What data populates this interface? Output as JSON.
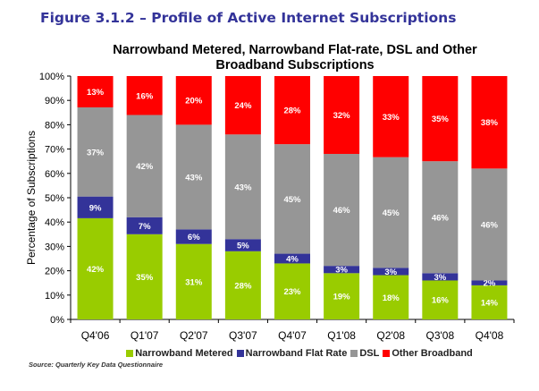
{
  "figure_title": "Figure 3.1.2 – Profile of Active Internet Subscriptions",
  "source": "Source:  Quarterly Key Data Questionnaire",
  "chart_data": {
    "type": "bar",
    "stacked": true,
    "title": "Narrowband Metered, Narrowband Flat-rate, DSL and Other Broadband Subscriptions",
    "title_lines": [
      "Narrowband Metered, Narrowband Flat-rate, DSL and Other",
      "Broadband Subscriptions"
    ],
    "xlabel": "",
    "ylabel": "Percentage of Subscriptions",
    "ylim": [
      0,
      100
    ],
    "yticks": [
      "0%",
      "10%",
      "20%",
      "30%",
      "40%",
      "50%",
      "60%",
      "70%",
      "80%",
      "90%",
      "100%"
    ],
    "categories": [
      "Q4'06",
      "Q1'07",
      "Q2'07",
      "Q3'07",
      "Q4'07",
      "Q1'08",
      "Q2'08",
      "Q3'08",
      "Q4'08"
    ],
    "series": [
      {
        "name": "Narrowband Metered",
        "color": "#99CC00",
        "values": [
          42,
          35,
          31,
          28,
          23,
          19,
          18,
          16,
          14
        ],
        "labels": [
          "42%",
          "35%",
          "31%",
          "28%",
          "23%",
          "19%",
          "18%",
          "16%",
          "14%"
        ]
      },
      {
        "name": "Narrowband Flat Rate",
        "color": "#333399",
        "values": [
          9,
          7,
          6,
          5,
          4,
          3,
          3,
          3,
          2
        ],
        "labels": [
          "9%",
          "7%",
          "6%",
          "5%",
          "4%",
          "3%",
          "3%",
          "3%",
          "2%"
        ]
      },
      {
        "name": "DSL",
        "color": "#969696",
        "values": [
          37,
          42,
          43,
          43,
          45,
          46,
          45,
          46,
          46
        ],
        "labels": [
          "37%",
          "42%",
          "43%",
          "43%",
          "45%",
          "46%",
          "45%",
          "46%",
          "46%"
        ]
      },
      {
        "name": "Other Broadband",
        "color": "#FF0000",
        "values": [
          13,
          16,
          20,
          24,
          28,
          32,
          33,
          35,
          38
        ],
        "labels": [
          "13%",
          "16%",
          "20%",
          "24%",
          "28%",
          "32%",
          "33%",
          "35%",
          "38%"
        ]
      }
    ],
    "legend_position": "bottom",
    "grid": false
  }
}
